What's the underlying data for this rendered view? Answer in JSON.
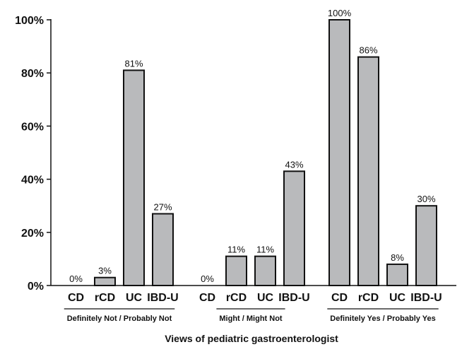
{
  "chart_data": {
    "type": "bar",
    "xlabel": "Views of pediatric gastroenterologist",
    "ylabel": "",
    "ylim": [
      0,
      100
    ],
    "y_ticks": [
      "0%",
      "20%",
      "40%",
      "60%",
      "80%",
      "100%"
    ],
    "colors": {
      "bar_fill": "#b9babc",
      "bar_stroke": "#111111"
    },
    "groups": [
      {
        "name": "Definitely Not / Probably Not",
        "categories": [
          "CD",
          "rCD",
          "UC",
          "IBD-U"
        ],
        "values": [
          0,
          3,
          81,
          27
        ],
        "labels": [
          "0%",
          "3%",
          "81%",
          "27%"
        ]
      },
      {
        "name": "Might / Might Not",
        "categories": [
          "CD",
          "rCD",
          "UC",
          "IBD-U"
        ],
        "values": [
          0,
          11,
          11,
          43
        ],
        "labels": [
          "0%",
          "11%",
          "11%",
          "43%"
        ]
      },
      {
        "name": "Definitely Yes / Probably Yes",
        "categories": [
          "CD",
          "rCD",
          "UC",
          "IBD-U"
        ],
        "values": [
          100,
          86,
          8,
          30
        ],
        "labels": [
          "100%",
          "86%",
          "8%",
          "30%"
        ]
      }
    ]
  }
}
